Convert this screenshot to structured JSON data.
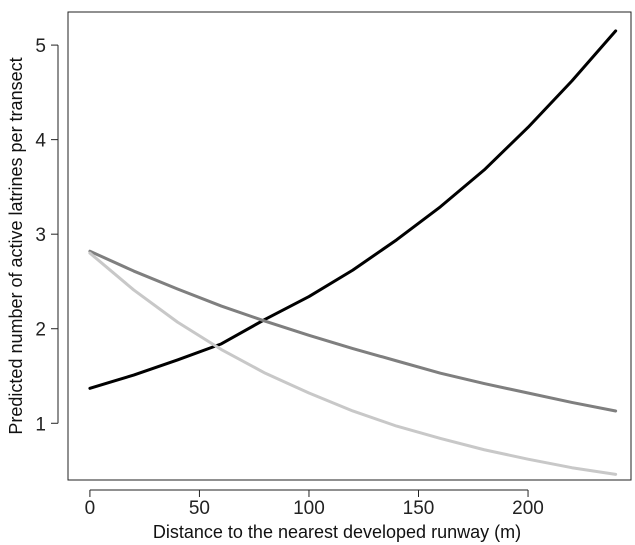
{
  "chart_data": {
    "type": "line",
    "title": "",
    "xlabel": "Distance to the nearest developed runway (m)",
    "ylabel": "Predicted number of active latrines per transect",
    "xlim": [
      -10,
      247
    ],
    "ylim": [
      0.4,
      5.35
    ],
    "x_ticks": [
      0,
      50,
      100,
      150,
      200
    ],
    "y_ticks": [
      1,
      2,
      3,
      4,
      5
    ],
    "grid": false,
    "legend": "none",
    "series": [
      {
        "color": "#000000",
        "points": [
          [
            0,
            1.37
          ],
          [
            20,
            1.51
          ],
          [
            40,
            1.67
          ],
          [
            60,
            1.84
          ],
          [
            80,
            2.1
          ],
          [
            100,
            2.34
          ],
          [
            120,
            2.62
          ],
          [
            140,
            2.94
          ],
          [
            160,
            3.29
          ],
          [
            180,
            3.68
          ],
          [
            200,
            4.13
          ],
          [
            220,
            4.62
          ],
          [
            240,
            5.15
          ]
        ]
      },
      {
        "color": "#7f7f7f",
        "points": [
          [
            0,
            2.82
          ],
          [
            20,
            2.61
          ],
          [
            40,
            2.42
          ],
          [
            60,
            2.24
          ],
          [
            80,
            2.08
          ],
          [
            100,
            1.93
          ],
          [
            120,
            1.79
          ],
          [
            140,
            1.66
          ],
          [
            160,
            1.53
          ],
          [
            180,
            1.42
          ],
          [
            200,
            1.32
          ],
          [
            220,
            1.22
          ],
          [
            240,
            1.13
          ]
        ]
      },
      {
        "color": "#c8c8c8",
        "points": [
          [
            0,
            2.8
          ],
          [
            20,
            2.41
          ],
          [
            40,
            2.07
          ],
          [
            60,
            1.78
          ],
          [
            80,
            1.53
          ],
          [
            100,
            1.32
          ],
          [
            120,
            1.13
          ],
          [
            140,
            0.97
          ],
          [
            160,
            0.84
          ],
          [
            180,
            0.72
          ],
          [
            200,
            0.62
          ],
          [
            220,
            0.53
          ],
          [
            240,
            0.46
          ]
        ]
      }
    ]
  }
}
